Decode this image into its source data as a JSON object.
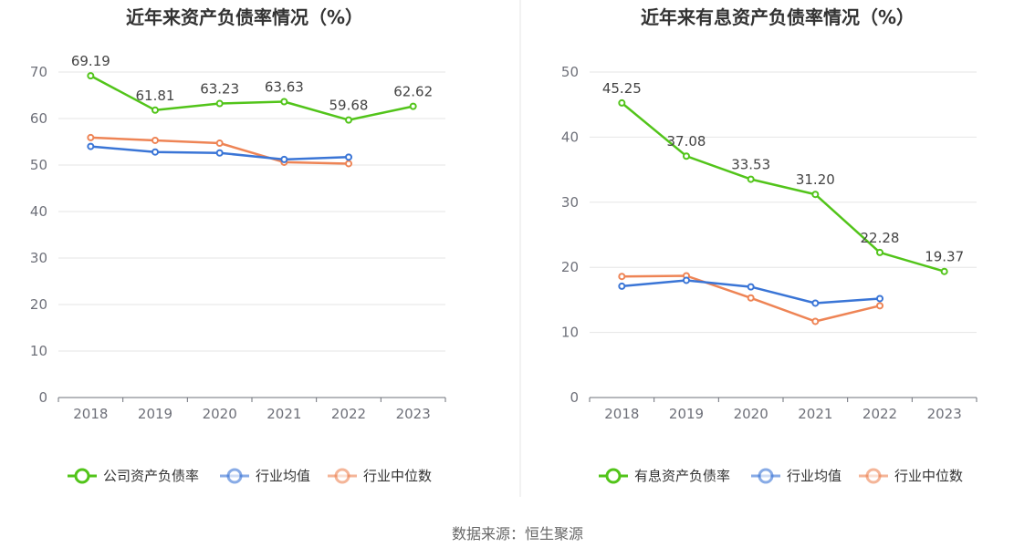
{
  "chart_data": [
    {
      "type": "line",
      "title": "近年来资产负债率情况（%）",
      "categories": [
        "2018",
        "2019",
        "2020",
        "2021",
        "2022",
        "2023"
      ],
      "ylim": [
        0,
        70
      ],
      "yticks": [
        0,
        10,
        20,
        30,
        40,
        50,
        60,
        70
      ],
      "series": [
        {
          "name": "公司资产负债率",
          "color": "#52c41a",
          "values": [
            69.19,
            61.81,
            63.23,
            63.63,
            59.68,
            62.62
          ],
          "labels": [
            "69.19",
            "61.81",
            "63.23",
            "63.63",
            "59.68",
            "62.62"
          ]
        },
        {
          "name": "行业均值",
          "color": "#3a75d6",
          "values": [
            54.0,
            52.8,
            52.6,
            51.2,
            51.7,
            null
          ]
        },
        {
          "name": "行业中位数",
          "color": "#ee8455",
          "values": [
            55.9,
            55.3,
            54.7,
            50.6,
            50.3,
            null
          ]
        }
      ],
      "legend": "bottom"
    },
    {
      "type": "line",
      "title": "近年来有息资产负债率情况（%）",
      "categories": [
        "2018",
        "2019",
        "2020",
        "2021",
        "2022",
        "2023"
      ],
      "ylim": [
        0,
        50
      ],
      "yticks": [
        0,
        10,
        20,
        30,
        40,
        50
      ],
      "series": [
        {
          "name": "有息资产负债率",
          "color": "#52c41a",
          "values": [
            45.25,
            37.08,
            33.53,
            31.2,
            22.28,
            19.37
          ],
          "labels": [
            "45.25",
            "37.08",
            "33.53",
            "31.20",
            "22.28",
            "19.37"
          ]
        },
        {
          "name": "行业均值",
          "color": "#3a75d6",
          "values": [
            17.1,
            18.0,
            17.0,
            14.5,
            15.2,
            null
          ]
        },
        {
          "name": "行业中位数",
          "color": "#ee8455",
          "values": [
            18.6,
            18.7,
            15.3,
            11.7,
            14.1,
            null
          ]
        }
      ],
      "legend": "bottom"
    }
  ],
  "source": "数据来源：恒生聚源"
}
